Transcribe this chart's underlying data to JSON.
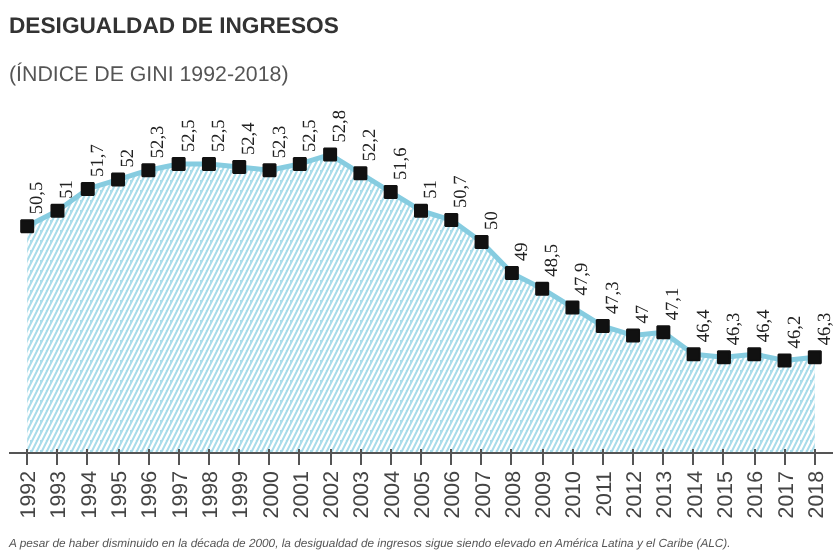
{
  "chart_data": {
    "type": "area",
    "title": "DESIGUALDAD DE INGRESOS",
    "subtitle": "(ÍNDICE DE GINI 1992-2018)",
    "categories": [
      "1992",
      "1993",
      "1994",
      "1995",
      "1996",
      "1997",
      "1998",
      "1999",
      "2000",
      "2001",
      "2002",
      "2003",
      "2004",
      "2005",
      "2006",
      "2007",
      "2008",
      "2009",
      "2010",
      "2011",
      "2012",
      "2013",
      "2014",
      "2015",
      "2016",
      "2017",
      "2018"
    ],
    "values": [
      50.5,
      51,
      51.7,
      52,
      52.3,
      52.5,
      52.5,
      52.4,
      52.3,
      52.5,
      52.8,
      52.2,
      51.6,
      51,
      50.7,
      50,
      49,
      48.5,
      47.9,
      47.3,
      47,
      47.1,
      46.4,
      46.3,
      46.4,
      46.2,
      46.3
    ],
    "value_labels": [
      "50,5",
      "51",
      "51,7",
      "52",
      "52,3",
      "52,5",
      "52,5",
      "52,4",
      "52,3",
      "52,5",
      "52,8",
      "52,2",
      "51,6",
      "51",
      "50,7",
      "50",
      "49",
      "48,5",
      "47,9",
      "47,3",
      "47",
      "47,1",
      "46,4",
      "46,3",
      "46,4",
      "46,2",
      "46,3"
    ],
    "color": "#a8dcea",
    "marker": "square",
    "grid": false,
    "tick_labels": "x",
    "annotations": [
      "A pesar de haber disminuido en la década de 2000, la desigualdad de ingresos sigue siendo elevado en América Latina y el Caribe (ALC)."
    ]
  }
}
